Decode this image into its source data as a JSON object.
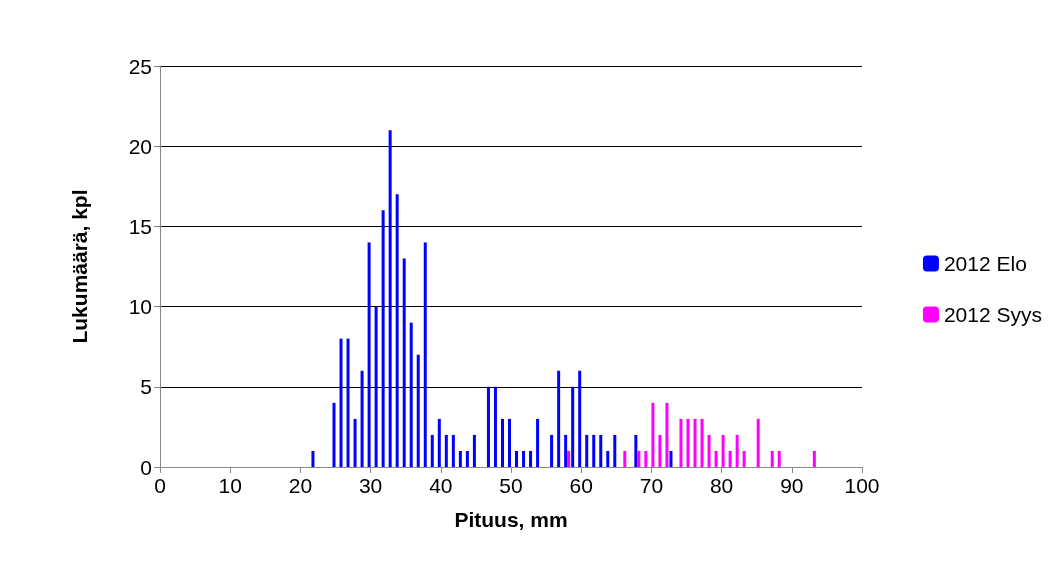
{
  "chart_data": {
    "type": "bar",
    "xlabel": "Pituus, mm",
    "ylabel": "Lukumäärä, kpl",
    "xlim": [
      0,
      100
    ],
    "xticks": [
      0,
      10,
      20,
      30,
      40,
      50,
      60,
      70,
      80,
      90,
      100
    ],
    "ylim": [
      0,
      25
    ],
    "yticks": [
      0,
      5,
      10,
      15,
      20,
      25
    ],
    "grid": "y",
    "legend": "right",
    "series": [
      {
        "name": "2012 Elo",
        "color": "#0000ff",
        "x": [
          22,
          25,
          26,
          27,
          28,
          29,
          30,
          31,
          32,
          33,
          34,
          35,
          36,
          37,
          38,
          39,
          40,
          41,
          42,
          43,
          44,
          45,
          47,
          48,
          49,
          50,
          51,
          52,
          53,
          54,
          56,
          57,
          58,
          59,
          60,
          61,
          62,
          63,
          64,
          65,
          68,
          73
        ],
        "values": [
          1,
          4,
          8,
          8,
          3,
          6,
          14,
          10,
          16,
          21,
          17,
          13,
          9,
          7,
          14,
          2,
          3,
          2,
          2,
          1,
          1,
          2,
          5,
          5,
          3,
          3,
          1,
          1,
          1,
          3,
          2,
          6,
          2,
          5,
          6,
          2,
          2,
          2,
          1,
          2,
          2,
          1
        ]
      },
      {
        "name": "2012 Syys",
        "color": "#ff00ff",
        "x": [
          58,
          66,
          68,
          69,
          70,
          71,
          72,
          74,
          75,
          76,
          77,
          78,
          79,
          80,
          81,
          82,
          83,
          85,
          87,
          88,
          93
        ],
        "values": [
          1,
          1,
          1,
          1,
          4,
          2,
          4,
          3,
          3,
          3,
          3,
          2,
          1,
          2,
          1,
          2,
          1,
          3,
          1,
          1,
          1
        ]
      }
    ]
  }
}
